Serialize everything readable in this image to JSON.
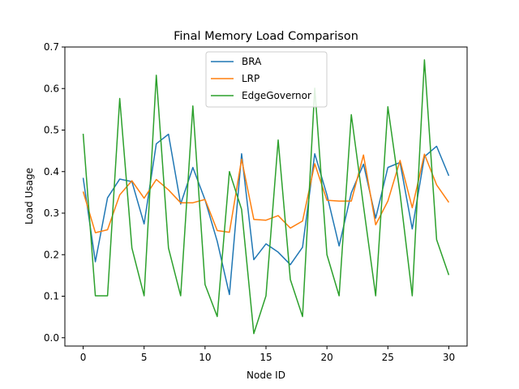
{
  "chart_data": {
    "type": "line",
    "title": "Final Memory Load Comparison",
    "xlabel": "Node ID",
    "ylabel": "Load Usage",
    "xlim": [
      -1.5,
      31.5
    ],
    "ylim": [
      -0.02,
      0.7
    ],
    "x_ticks": [
      0,
      5,
      10,
      15,
      20,
      25,
      30
    ],
    "y_ticks": [
      0.0,
      0.1,
      0.2,
      0.3,
      0.4,
      0.5,
      0.6,
      0.7
    ],
    "x_tick_labels": [
      "0",
      "5",
      "10",
      "15",
      "20",
      "25",
      "30"
    ],
    "y_tick_labels": [
      "0.0",
      "0.1",
      "0.2",
      "0.3",
      "0.4",
      "0.5",
      "0.6",
      "0.7"
    ],
    "grid": false,
    "legend_position": "upper center",
    "x": [
      0,
      1,
      2,
      3,
      4,
      5,
      6,
      7,
      8,
      9,
      10,
      11,
      12,
      13,
      14,
      15,
      16,
      17,
      18,
      19,
      20,
      21,
      22,
      23,
      24,
      25,
      26,
      27,
      28,
      29,
      30
    ],
    "series": [
      {
        "name": "BRA",
        "color": "#1f77b4",
        "values": [
          0.385,
          0.183,
          0.337,
          0.382,
          0.376,
          0.274,
          0.467,
          0.49,
          0.322,
          0.41,
          0.332,
          0.232,
          0.104,
          0.443,
          0.188,
          0.226,
          0.206,
          0.176,
          0.218,
          0.443,
          0.344,
          0.221,
          0.349,
          0.418,
          0.288,
          0.41,
          0.422,
          0.262,
          0.436,
          0.461,
          0.39
        ]
      },
      {
        "name": "LRP",
        "color": "#ff7f0e",
        "values": [
          0.352,
          0.253,
          0.26,
          0.344,
          0.378,
          0.336,
          0.381,
          0.356,
          0.325,
          0.325,
          0.333,
          0.258,
          0.254,
          0.43,
          0.285,
          0.283,
          0.294,
          0.264,
          0.281,
          0.419,
          0.331,
          0.329,
          0.329,
          0.44,
          0.272,
          0.329,
          0.427,
          0.313,
          0.442,
          0.368,
          0.326
        ]
      },
      {
        "name": "EdgeGovernor",
        "color": "#2ca02c",
        "values": [
          0.491,
          0.101,
          0.101,
          0.576,
          0.216,
          0.101,
          0.632,
          0.216,
          0.101,
          0.558,
          0.128,
          0.051,
          0.4,
          0.309,
          0.01,
          0.101,
          0.476,
          0.14,
          0.051,
          0.601,
          0.2,
          0.101,
          0.537,
          0.317,
          0.101,
          0.556,
          0.347,
          0.101,
          0.669,
          0.236,
          0.151
        ]
      }
    ]
  }
}
